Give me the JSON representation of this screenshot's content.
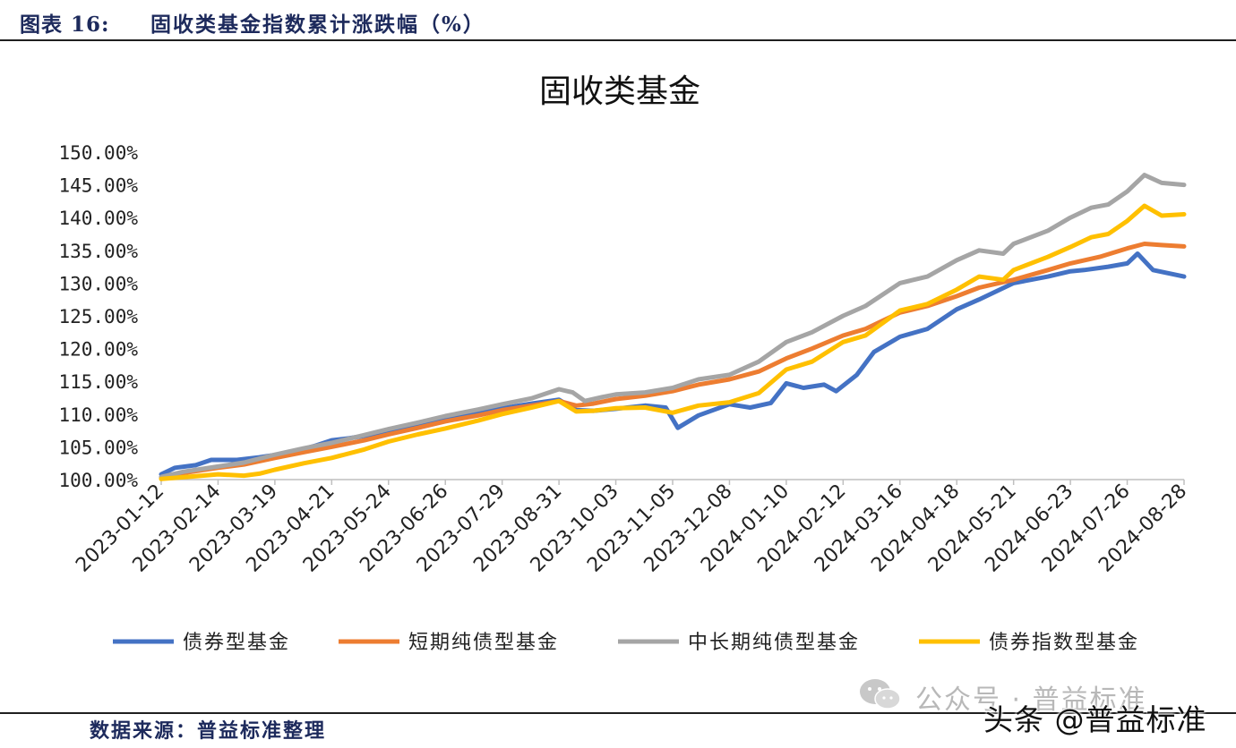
{
  "header": {
    "label": "图表 16:",
    "caption": "固收类基金指数累计涨跌幅（%）"
  },
  "footer": {
    "source": "数据来源：普益标准整理"
  },
  "watermarks": {
    "wechat_icon": "wechat-icon",
    "account": "公众号 · 普益标准",
    "toutiao": "头条 @普益标准"
  },
  "chart_data": {
    "type": "line",
    "title": "固收类基金",
    "xlabel": "",
    "ylabel": "",
    "ylim": [
      100,
      150
    ],
    "yticks": [
      100,
      105,
      110,
      115,
      120,
      125,
      130,
      135,
      140,
      145,
      150
    ],
    "ytick_labels": [
      "100.00%",
      "105.00%",
      "110.00%",
      "115.00%",
      "120.00%",
      "125.00%",
      "130.00%",
      "135.00%",
      "140.00%",
      "145.00%",
      "150.00%"
    ],
    "xlim": [
      "2023-01-12",
      "2024-08-28"
    ],
    "xticks": [
      "2023-01-12",
      "2023-02-14",
      "2023-03-19",
      "2023-04-21",
      "2023-05-24",
      "2023-06-26",
      "2023-07-29",
      "2023-08-31",
      "2023-10-03",
      "2023-11-05",
      "2023-12-08",
      "2024-01-10",
      "2024-02-12",
      "2024-03-16",
      "2024-04-18",
      "2024-05-21",
      "2024-06-23",
      "2024-07-26",
      "2024-08-28"
    ],
    "grid": false,
    "legend": "bottom",
    "series": [
      {
        "name": "债券型基金",
        "color": "#4472c4",
        "points": [
          [
            "2023-01-12",
            100.8
          ],
          [
            "2023-01-20",
            101.8
          ],
          [
            "2023-02-01",
            102.2
          ],
          [
            "2023-02-10",
            103.0
          ],
          [
            "2023-02-25",
            103.0
          ],
          [
            "2023-03-10",
            103.4
          ],
          [
            "2023-03-20",
            103.8
          ],
          [
            "2023-04-01",
            104.4
          ],
          [
            "2023-04-12",
            105.2
          ],
          [
            "2023-04-21",
            106.0
          ],
          [
            "2023-05-01",
            106.3
          ],
          [
            "2023-05-15",
            106.9
          ],
          [
            "2023-06-01",
            107.6
          ],
          [
            "2023-06-15",
            108.4
          ],
          [
            "2023-07-01",
            109.4
          ],
          [
            "2023-07-15",
            110.2
          ],
          [
            "2023-08-01",
            111.0
          ],
          [
            "2023-08-15",
            111.6
          ],
          [
            "2023-08-31",
            112.2
          ],
          [
            "2023-09-10",
            110.6
          ],
          [
            "2023-09-20",
            110.5
          ],
          [
            "2023-10-03",
            110.8
          ],
          [
            "2023-10-20",
            111.3
          ],
          [
            "2023-11-01",
            111.0
          ],
          [
            "2023-11-08",
            107.9
          ],
          [
            "2023-11-20",
            109.8
          ],
          [
            "2023-12-08",
            111.5
          ],
          [
            "2023-12-20",
            111.0
          ],
          [
            "2024-01-01",
            111.7
          ],
          [
            "2024-01-10",
            114.7
          ],
          [
            "2024-01-20",
            114.0
          ],
          [
            "2024-02-01",
            114.5
          ],
          [
            "2024-02-08",
            113.5
          ],
          [
            "2024-02-20",
            116.0
          ],
          [
            "2024-03-01",
            119.5
          ],
          [
            "2024-03-16",
            121.8
          ],
          [
            "2024-04-01",
            123.0
          ],
          [
            "2024-04-18",
            126.0
          ],
          [
            "2024-05-01",
            127.5
          ],
          [
            "2024-05-21",
            130.0
          ],
          [
            "2024-06-10",
            131.0
          ],
          [
            "2024-06-23",
            131.8
          ],
          [
            "2024-07-01",
            132.0
          ],
          [
            "2024-07-15",
            132.5
          ],
          [
            "2024-07-26",
            133.0
          ],
          [
            "2024-08-01",
            134.5
          ],
          [
            "2024-08-10",
            132.0
          ],
          [
            "2024-08-28",
            131.0
          ]
        ]
      },
      {
        "name": "短期纯债型基金",
        "color": "#ed7d31",
        "points": [
          [
            "2023-01-12",
            100.3
          ],
          [
            "2023-01-25",
            101.0
          ],
          [
            "2023-02-14",
            101.8
          ],
          [
            "2023-03-01",
            102.3
          ],
          [
            "2023-03-19",
            103.3
          ],
          [
            "2023-04-05",
            104.2
          ],
          [
            "2023-04-21",
            105.0
          ],
          [
            "2023-05-10",
            106.0
          ],
          [
            "2023-05-24",
            106.9
          ],
          [
            "2023-06-10",
            107.9
          ],
          [
            "2023-06-26",
            108.9
          ],
          [
            "2023-07-15",
            109.8
          ],
          [
            "2023-07-29",
            110.6
          ],
          [
            "2023-08-15",
            111.3
          ],
          [
            "2023-08-31",
            112.0
          ],
          [
            "2023-09-10",
            111.3
          ],
          [
            "2023-09-20",
            111.6
          ],
          [
            "2023-10-03",
            112.3
          ],
          [
            "2023-10-20",
            112.8
          ],
          [
            "2023-11-05",
            113.5
          ],
          [
            "2023-11-20",
            114.5
          ],
          [
            "2023-12-08",
            115.3
          ],
          [
            "2023-12-25",
            116.5
          ],
          [
            "2024-01-10",
            118.5
          ],
          [
            "2024-01-25",
            120.0
          ],
          [
            "2024-02-12",
            122.0
          ],
          [
            "2024-02-25",
            123.0
          ],
          [
            "2024-03-16",
            125.5
          ],
          [
            "2024-04-01",
            126.5
          ],
          [
            "2024-04-18",
            128.0
          ],
          [
            "2024-05-01",
            129.3
          ],
          [
            "2024-05-21",
            130.5
          ],
          [
            "2024-06-10",
            132.0
          ],
          [
            "2024-06-23",
            133.0
          ],
          [
            "2024-07-10",
            134.0
          ],
          [
            "2024-07-26",
            135.3
          ],
          [
            "2024-08-05",
            136.0
          ],
          [
            "2024-08-15",
            135.8
          ],
          [
            "2024-08-28",
            135.6
          ]
        ]
      },
      {
        "name": "中长期纯债型基金",
        "color": "#a5a5a5",
        "points": [
          [
            "2023-01-12",
            100.4
          ],
          [
            "2023-01-25",
            101.2
          ],
          [
            "2023-02-14",
            102.0
          ],
          [
            "2023-03-01",
            102.6
          ],
          [
            "2023-03-19",
            103.8
          ],
          [
            "2023-04-05",
            104.8
          ],
          [
            "2023-04-21",
            105.6
          ],
          [
            "2023-05-10",
            106.8
          ],
          [
            "2023-05-24",
            107.7
          ],
          [
            "2023-06-10",
            108.7
          ],
          [
            "2023-06-26",
            109.7
          ],
          [
            "2023-07-15",
            110.7
          ],
          [
            "2023-07-29",
            111.5
          ],
          [
            "2023-08-15",
            112.4
          ],
          [
            "2023-08-31",
            113.8
          ],
          [
            "2023-09-08",
            113.3
          ],
          [
            "2023-09-15",
            112.0
          ],
          [
            "2023-09-25",
            112.6
          ],
          [
            "2023-10-03",
            113.0
          ],
          [
            "2023-10-20",
            113.3
          ],
          [
            "2023-11-05",
            114.0
          ],
          [
            "2023-11-20",
            115.3
          ],
          [
            "2023-12-08",
            116.0
          ],
          [
            "2023-12-25",
            118.0
          ],
          [
            "2024-01-10",
            121.0
          ],
          [
            "2024-01-25",
            122.5
          ],
          [
            "2024-02-12",
            125.0
          ],
          [
            "2024-02-25",
            126.5
          ],
          [
            "2024-03-16",
            130.0
          ],
          [
            "2024-04-01",
            131.0
          ],
          [
            "2024-04-18",
            133.5
          ],
          [
            "2024-05-01",
            135.0
          ],
          [
            "2024-05-15",
            134.5
          ],
          [
            "2024-05-21",
            136.0
          ],
          [
            "2024-06-10",
            138.0
          ],
          [
            "2024-06-23",
            140.0
          ],
          [
            "2024-07-05",
            141.5
          ],
          [
            "2024-07-15",
            142.0
          ],
          [
            "2024-07-26",
            144.0
          ],
          [
            "2024-08-05",
            146.5
          ],
          [
            "2024-08-15",
            145.3
          ],
          [
            "2024-08-28",
            145.0
          ]
        ]
      },
      {
        "name": "债券指数型基金",
        "color": "#ffc000",
        "points": [
          [
            "2023-01-12",
            100.1
          ],
          [
            "2023-02-01",
            100.5
          ],
          [
            "2023-02-14",
            100.8
          ],
          [
            "2023-03-01",
            100.6
          ],
          [
            "2023-03-10",
            100.9
          ],
          [
            "2023-03-19",
            101.5
          ],
          [
            "2023-04-05",
            102.5
          ],
          [
            "2023-04-21",
            103.3
          ],
          [
            "2023-05-10",
            104.6
          ],
          [
            "2023-05-24",
            105.8
          ],
          [
            "2023-06-10",
            106.9
          ],
          [
            "2023-06-26",
            107.8
          ],
          [
            "2023-07-15",
            109.0
          ],
          [
            "2023-07-29",
            110.0
          ],
          [
            "2023-08-15",
            111.0
          ],
          [
            "2023-08-31",
            112.0
          ],
          [
            "2023-09-10",
            110.4
          ],
          [
            "2023-09-20",
            110.5
          ],
          [
            "2023-10-03",
            110.9
          ],
          [
            "2023-10-20",
            111.0
          ],
          [
            "2023-11-05",
            110.2
          ],
          [
            "2023-11-20",
            111.3
          ],
          [
            "2023-12-08",
            111.8
          ],
          [
            "2023-12-25",
            113.2
          ],
          [
            "2024-01-10",
            116.8
          ],
          [
            "2024-01-25",
            118.0
          ],
          [
            "2024-02-12",
            121.0
          ],
          [
            "2024-02-25",
            122.0
          ],
          [
            "2024-03-16",
            125.8
          ],
          [
            "2024-04-01",
            126.8
          ],
          [
            "2024-04-18",
            129.0
          ],
          [
            "2024-05-01",
            131.0
          ],
          [
            "2024-05-15",
            130.5
          ],
          [
            "2024-05-21",
            132.0
          ],
          [
            "2024-06-10",
            134.0
          ],
          [
            "2024-06-23",
            135.5
          ],
          [
            "2024-07-05",
            137.0
          ],
          [
            "2024-07-15",
            137.5
          ],
          [
            "2024-07-26",
            139.5
          ],
          [
            "2024-08-05",
            141.8
          ],
          [
            "2024-08-15",
            140.3
          ],
          [
            "2024-08-28",
            140.5
          ]
        ]
      }
    ]
  }
}
